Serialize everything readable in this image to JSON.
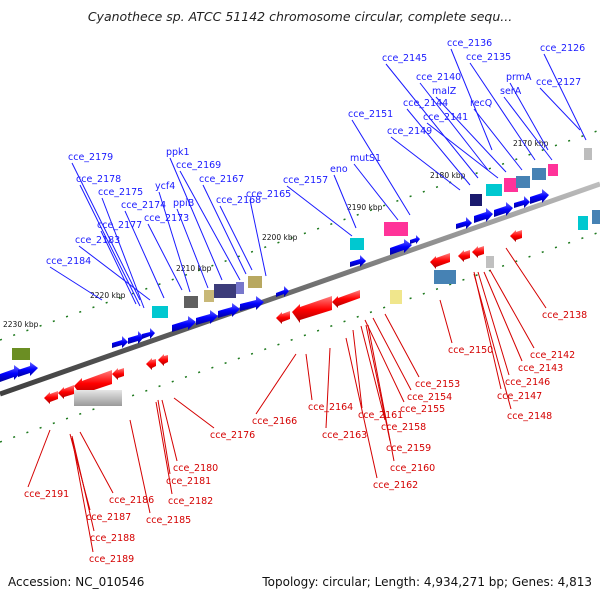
{
  "title": "Cyanothece sp. ATCC 51142 chromosome circular, complete sequ...",
  "footer": {
    "accession": "Accession: NC_010546",
    "summary": "Topology: circular; Length: 4,934,271 bp; Genes: 4,813"
  },
  "colors": {
    "forward": "#0000ff",
    "reverse": "#ff0000",
    "forward_label": "#1a1aff",
    "reverse_label": "#d40000",
    "backbone": "#7a7a7a",
    "tick": "#1f7a1f"
  },
  "kbp_ticks": [
    "2170 kbp",
    "2180 kbp",
    "2190 kbp",
    "2200 kbp",
    "2210 kbp",
    "2220 kbp",
    "2230 kbp"
  ],
  "upper_labels": [
    "cce_2136",
    "cce_2126",
    "cce_2135",
    "cce_2145",
    "cce_2140",
    "prmA",
    "cce_2127",
    "malZ",
    "serA",
    "cce_2144",
    "recQ",
    "cce_2151",
    "cce_2141",
    "cce_2149",
    "mutS1",
    "eno",
    "cce_2157",
    "cce_2165",
    "ppk1",
    "cce_2169",
    "cce_2167",
    "cce_2168",
    "cce_2179",
    "ycf4",
    "cce_2178",
    "ppiB",
    "cce_2175",
    "cce_2174",
    "cce_2173",
    "cce_2177",
    "cce_2183",
    "cce_2184"
  ],
  "lower_labels": [
    "cce_2138",
    "cce_2150",
    "cce_2142",
    "cce_2143",
    "cce_2146",
    "cce_2153",
    "cce_2147",
    "cce_2154",
    "cce_2155",
    "cce_2148",
    "cce_2164",
    "cce_2161",
    "cce_2166",
    "cce_2158",
    "cce_2163",
    "cce_2176",
    "cce_2159",
    "cce_2160",
    "cce_2180",
    "cce_2181",
    "cce_2162",
    "cce_2191",
    "cce_2186",
    "cce_2182",
    "cce_2187",
    "cce_2185",
    "cce_2188",
    "cce_2189"
  ]
}
